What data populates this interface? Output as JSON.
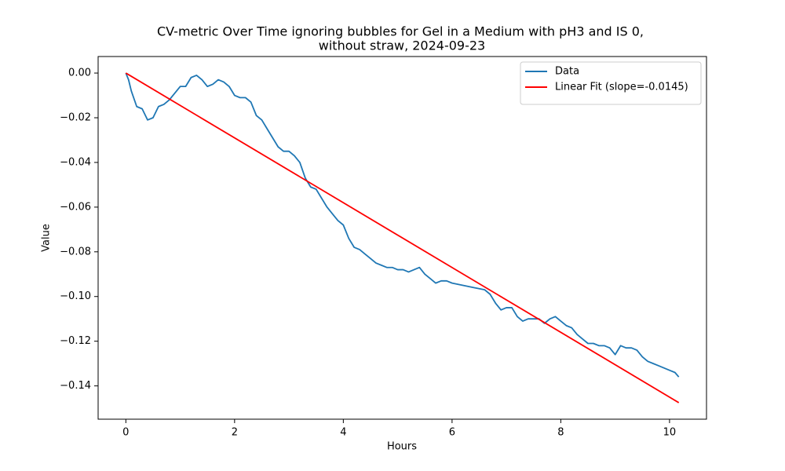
{
  "chart_data": {
    "type": "line",
    "title": [
      "CV-metric Over Time ignoring bubbles for Gel in a Medium with pH3 and IS 0,",
      "without straw, 2024-09-23"
    ],
    "xlabel": "Hours",
    "ylabel": "Value",
    "xlim": [
      -0.51,
      10.68
    ],
    "ylim": [
      -0.1549,
      0.0074
    ],
    "xticks": [
      0,
      2,
      4,
      6,
      8,
      10
    ],
    "yticks": [
      {
        "value": 0,
        "label": "0.00"
      },
      {
        "value": -0.02,
        "label": "−0.02"
      },
      {
        "value": -0.04,
        "label": "−0.04"
      },
      {
        "value": -0.06,
        "label": "−0.06"
      },
      {
        "value": -0.08,
        "label": "−0.08"
      },
      {
        "value": -0.1,
        "label": "−0.10"
      },
      {
        "value": -0.12,
        "label": "−0.12"
      },
      {
        "value": -0.14,
        "label": "−0.14"
      }
    ],
    "grid": false,
    "legend": "upper right",
    "series": [
      {
        "name": "Data",
        "color": "#1f77b4",
        "x": [
          0,
          0.05,
          0.1,
          0.2,
          0.3,
          0.4,
          0.5,
          0.6,
          0.7,
          0.8,
          0.9,
          1.0,
          1.1,
          1.2,
          1.3,
          1.4,
          1.5,
          1.6,
          1.7,
          1.8,
          1.9,
          2.0,
          2.1,
          2.2,
          2.3,
          2.4,
          2.5,
          2.6,
          2.7,
          2.8,
          2.9,
          3.0,
          3.1,
          3.2,
          3.3,
          3.4,
          3.5,
          3.6,
          3.7,
          3.8,
          3.9,
          4.0,
          4.1,
          4.2,
          4.3,
          4.4,
          4.5,
          4.6,
          4.7,
          4.8,
          4.9,
          5.0,
          5.1,
          5.2,
          5.3,
          5.4,
          5.5,
          5.6,
          5.7,
          5.8,
          5.9,
          6.0,
          6.2,
          6.4,
          6.6,
          6.7,
          6.8,
          6.9,
          7.0,
          7.1,
          7.2,
          7.3,
          7.4,
          7.5,
          7.6,
          7.7,
          7.8,
          7.9,
          8.0,
          8.1,
          8.2,
          8.3,
          8.4,
          8.5,
          8.6,
          8.7,
          8.8,
          8.9,
          9.0,
          9.1,
          9.2,
          9.3,
          9.4,
          9.5,
          9.6,
          9.7,
          9.8,
          9.9,
          10.0,
          10.1,
          10.17
        ],
        "values": [
          0,
          -0.003,
          -0.008,
          -0.015,
          -0.016,
          -0.021,
          -0.02,
          -0.015,
          -0.014,
          -0.012,
          -0.009,
          -0.006,
          -0.006,
          -0.002,
          -0.001,
          -0.003,
          -0.006,
          -0.005,
          -0.003,
          -0.004,
          -0.006,
          -0.01,
          -0.011,
          -0.011,
          -0.013,
          -0.019,
          -0.021,
          -0.025,
          -0.029,
          -0.033,
          -0.035,
          -0.035,
          -0.037,
          -0.04,
          -0.047,
          -0.051,
          -0.052,
          -0.056,
          -0.06,
          -0.063,
          -0.066,
          -0.068,
          -0.074,
          -0.078,
          -0.079,
          -0.081,
          -0.083,
          -0.085,
          -0.086,
          -0.087,
          -0.087,
          -0.088,
          -0.088,
          -0.089,
          -0.088,
          -0.087,
          -0.09,
          -0.092,
          -0.094,
          -0.093,
          -0.093,
          -0.094,
          -0.095,
          -0.096,
          -0.097,
          -0.099,
          -0.103,
          -0.106,
          -0.105,
          -0.105,
          -0.109,
          -0.111,
          -0.11,
          -0.11,
          -0.11,
          -0.112,
          -0.11,
          -0.109,
          -0.111,
          -0.113,
          -0.114,
          -0.117,
          -0.119,
          -0.121,
          -0.121,
          -0.122,
          -0.122,
          -0.123,
          -0.126,
          -0.122,
          -0.123,
          -0.123,
          -0.124,
          -0.127,
          -0.129,
          -0.13,
          -0.131,
          -0.132,
          -0.133,
          -0.134,
          -0.136
        ]
      },
      {
        "name": "Linear Fit (slope=-0.0145)",
        "color": "#ff0000",
        "x": [
          0,
          10.17
        ],
        "values": [
          0,
          -0.1475
        ]
      }
    ]
  }
}
